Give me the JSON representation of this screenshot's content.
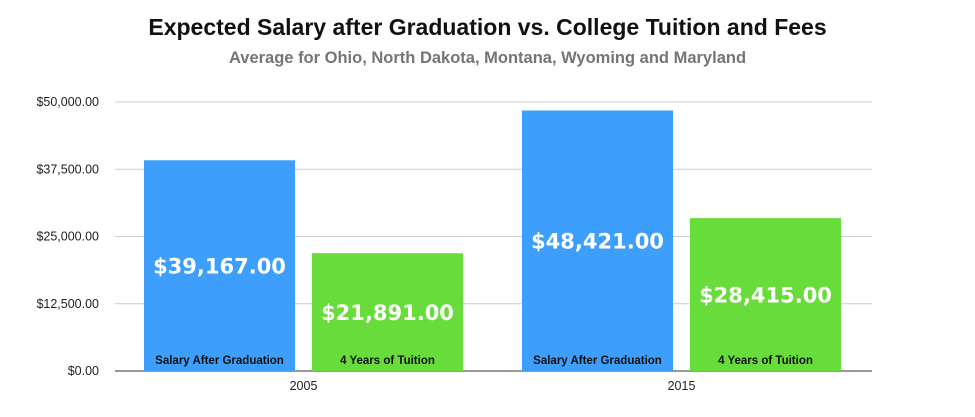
{
  "chart_data": {
    "type": "bar",
    "title": "Expected Salary after Graduation vs. College Tuition and Fees",
    "subtitle": "Average for Ohio, North Dakota, Montana, Wyoming and Maryland",
    "categories": [
      "2005",
      "2015"
    ],
    "series": [
      {
        "name": "Salary After Graduation",
        "values": [
          39167,
          48421
        ],
        "value_labels": [
          "$39,167.00",
          "$48,421.00"
        ],
        "color": "#3d9efc"
      },
      {
        "name": "4 Years of Tuition",
        "values": [
          21891,
          28415
        ],
        "value_labels": [
          "$21,891.00",
          "$28,415.00"
        ],
        "color": "#67dc3a"
      }
    ],
    "ylim": [
      0,
      50000
    ],
    "yticks": [
      0,
      12500,
      25000,
      37500,
      50000
    ],
    "ytick_labels": [
      "$0.00",
      "$12,500.00",
      "$25,000.00",
      "$37,500.00",
      "$50,000.00"
    ],
    "grid": true,
    "legend": "none"
  }
}
